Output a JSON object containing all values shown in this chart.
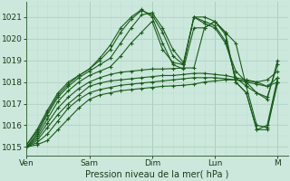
{
  "bg_color": "#cce8dc",
  "grid_color_major": "#aacfbe",
  "grid_color_minor": "#bdddd0",
  "line_color": "#1a5c1a",
  "marker": "+",
  "marker_size": 3,
  "linewidth": 0.8,
  "ylabel_ticks": [
    1015,
    1016,
    1017,
    1018,
    1019,
    1020,
    1021
  ],
  "ylim": [
    1014.6,
    1021.7
  ],
  "xlabel": "Pression niveau de la mer( hPa )",
  "xtick_labels": [
    "Ven",
    "Sam",
    "Dim",
    "Lun",
    "M"
  ],
  "xtick_positions": [
    0,
    24,
    48,
    72,
    96
  ],
  "xlim": [
    0,
    100
  ],
  "figsize": [
    3.2,
    2.0
  ],
  "dpi": 100,
  "series": [
    [
      0,
      1015.0,
      4,
      1015.1,
      8,
      1015.3,
      12,
      1015.8,
      16,
      1016.3,
      20,
      1016.8,
      24,
      1017.2,
      28,
      1017.4,
      32,
      1017.5,
      36,
      1017.6,
      40,
      1017.65,
      44,
      1017.7,
      48,
      1017.75,
      52,
      1017.8,
      56,
      1017.82,
      60,
      1017.85,
      64,
      1017.9,
      68,
      1018.0,
      72,
      1018.05,
      76,
      1018.1,
      80,
      1018.1,
      84,
      1018.05,
      88,
      1018.0,
      92,
      1018.1,
      96,
      1018.5
    ],
    [
      0,
      1015.0,
      4,
      1015.2,
      8,
      1015.6,
      12,
      1016.2,
      16,
      1016.8,
      20,
      1017.2,
      24,
      1017.5,
      28,
      1017.65,
      32,
      1017.75,
      36,
      1017.85,
      40,
      1017.9,
      44,
      1017.95,
      48,
      1018.0,
      52,
      1018.05,
      56,
      1018.1,
      60,
      1018.15,
      64,
      1018.2,
      68,
      1018.2,
      72,
      1018.2,
      76,
      1018.15,
      80,
      1018.1,
      84,
      1018.0,
      88,
      1017.9,
      92,
      1017.8,
      96,
      1018.0
    ],
    [
      0,
      1015.0,
      4,
      1015.3,
      8,
      1015.9,
      12,
      1016.5,
      16,
      1017.0,
      20,
      1017.4,
      24,
      1017.8,
      28,
      1017.95,
      32,
      1018.05,
      36,
      1018.1,
      40,
      1018.15,
      44,
      1018.2,
      48,
      1018.25,
      52,
      1018.3,
      56,
      1018.3,
      60,
      1018.35,
      64,
      1018.4,
      68,
      1018.4,
      72,
      1018.35,
      76,
      1018.3,
      80,
      1018.2,
      84,
      1018.1,
      88,
      1018.0,
      92,
      1017.8,
      96,
      1018.2
    ],
    [
      0,
      1015.0,
      4,
      1015.4,
      8,
      1016.1,
      12,
      1016.8,
      16,
      1017.3,
      20,
      1017.7,
      24,
      1018.0,
      28,
      1018.2,
      32,
      1018.35,
      36,
      1018.45,
      40,
      1018.5,
      44,
      1018.55,
      48,
      1018.6,
      52,
      1018.6,
      56,
      1018.62,
      60,
      1018.65,
      64,
      1018.65,
      68,
      1020.5,
      72,
      1020.8,
      76,
      1020.3,
      80,
      1019.8,
      84,
      1017.8,
      88,
      1017.5,
      92,
      1017.3,
      96,
      1018.8
    ],
    [
      0,
      1015.0,
      4,
      1015.5,
      8,
      1016.3,
      12,
      1017.1,
      16,
      1017.6,
      20,
      1018.0,
      24,
      1018.3,
      28,
      1018.5,
      32,
      1018.7,
      36,
      1019.2,
      40,
      1019.8,
      44,
      1020.3,
      48,
      1020.8,
      52,
      1019.5,
      56,
      1018.9,
      60,
      1018.8,
      64,
      1021.0,
      68,
      1020.7,
      72,
      1020.5,
      76,
      1019.8,
      80,
      1018.5,
      84,
      1018.0,
      88,
      1017.5,
      92,
      1017.2,
      96,
      1019.0
    ],
    [
      0,
      1015.0,
      4,
      1015.6,
      8,
      1016.5,
      12,
      1017.3,
      16,
      1017.8,
      20,
      1018.2,
      24,
      1018.5,
      28,
      1018.8,
      32,
      1019.1,
      36,
      1019.8,
      40,
      1020.5,
      44,
      1021.1,
      48,
      1021.2,
      52,
      1020.5,
      56,
      1019.5,
      60,
      1018.9,
      64,
      1021.0,
      68,
      1020.8,
      72,
      1020.6,
      76,
      1019.9,
      80,
      1018.2,
      84,
      1017.8,
      88,
      1016.0,
      92,
      1015.9,
      96,
      1018.0
    ],
    [
      0,
      1015.1,
      4,
      1015.7,
      8,
      1016.6,
      12,
      1017.4,
      16,
      1017.9,
      20,
      1018.3,
      24,
      1018.6,
      28,
      1019.0,
      32,
      1019.5,
      36,
      1020.3,
      40,
      1020.9,
      44,
      1021.3,
      48,
      1021.1,
      52,
      1020.3,
      56,
      1019.2,
      60,
      1018.8,
      64,
      1021.0,
      68,
      1021.0,
      72,
      1020.8,
      76,
      1020.2,
      80,
      1018.0,
      84,
      1017.5,
      88,
      1015.8,
      92,
      1015.8,
      96,
      1018.0
    ],
    [
      0,
      1015.1,
      4,
      1015.8,
      8,
      1016.7,
      12,
      1017.5,
      16,
      1018.0,
      20,
      1018.3,
      24,
      1018.6,
      28,
      1019.1,
      32,
      1019.7,
      36,
      1020.5,
      40,
      1021.0,
      44,
      1021.35,
      48,
      1021.0,
      52,
      1019.8,
      56,
      1018.8,
      60,
      1018.6,
      64,
      1020.5,
      68,
      1020.5,
      72,
      1020.8,
      76,
      1020.3,
      80,
      1018.0,
      84,
      1017.5,
      88,
      1015.8,
      92,
      1016.0,
      96,
      1018.2
    ]
  ]
}
